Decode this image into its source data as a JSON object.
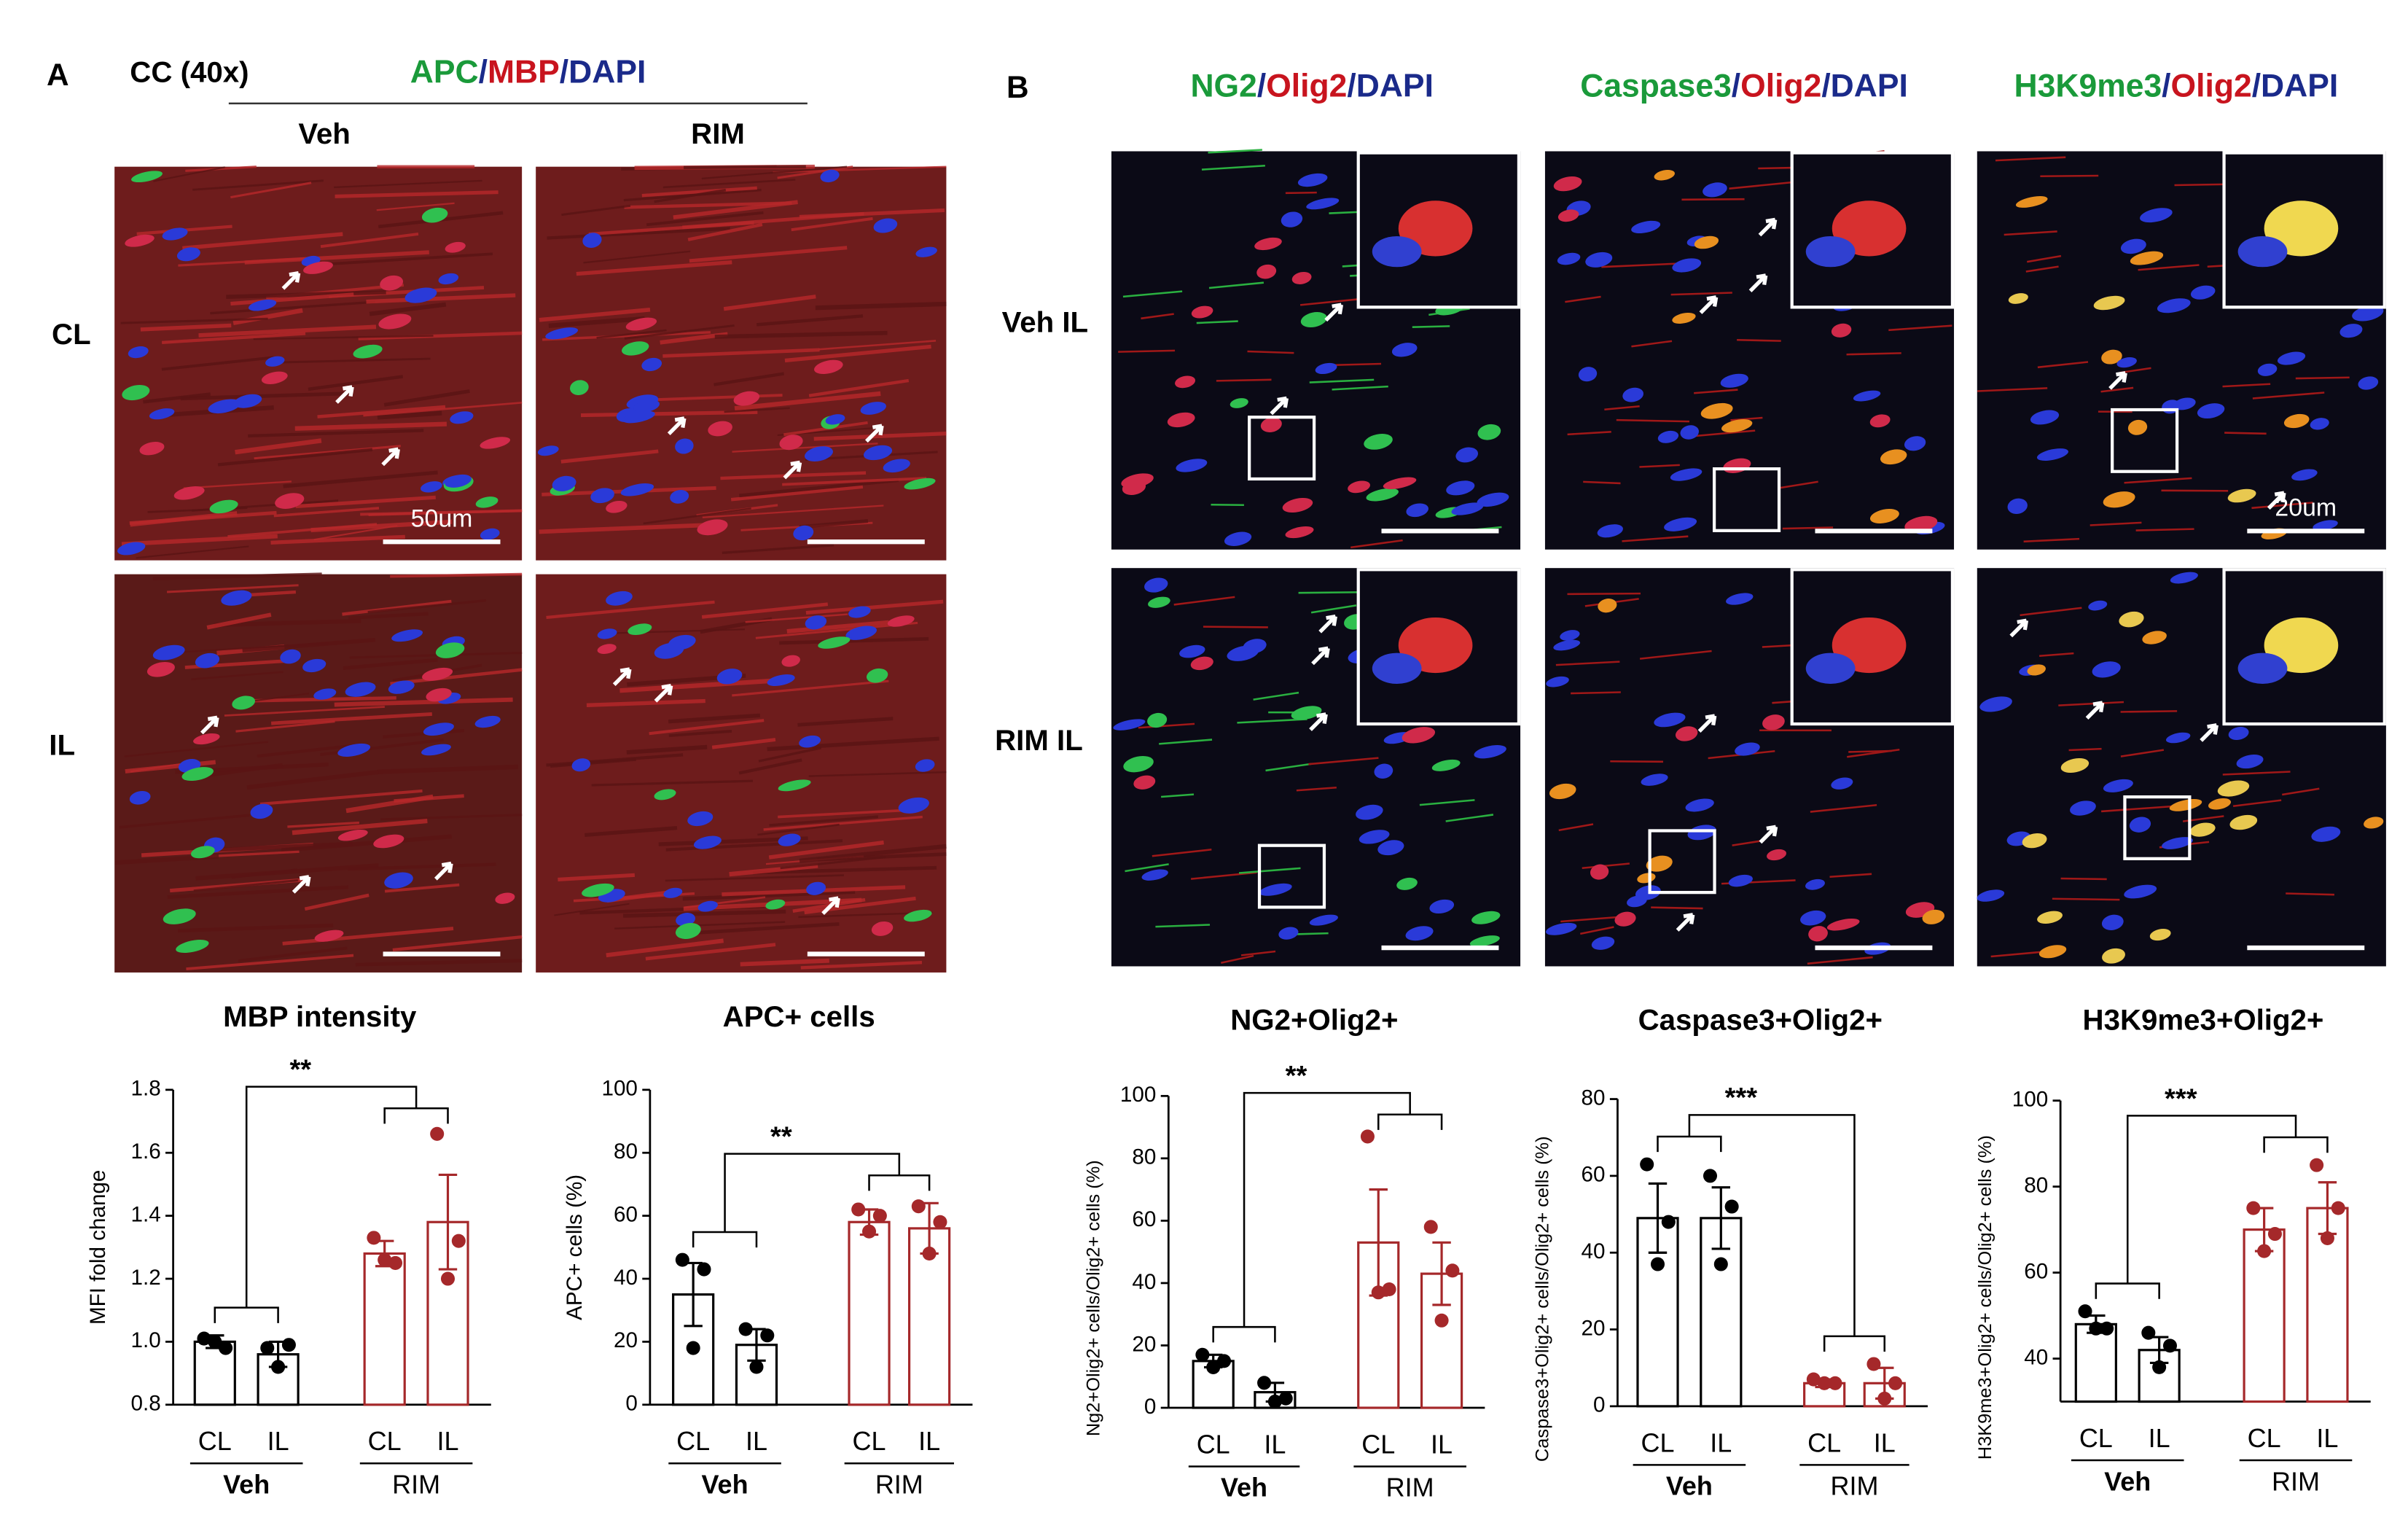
{
  "panel_a": {
    "label": "A",
    "region": "CC (40x)",
    "stain": [
      {
        "text": "APC",
        "color": "#1a9a3a"
      },
      {
        "text": "/",
        "color": "#1a2a8a"
      },
      {
        "text": "MBP",
        "color": "#c8141e"
      },
      {
        "text": "/",
        "color": "#1a2a8a"
      },
      {
        "text": "DAPI",
        "color": "#1a2a8a"
      }
    ],
    "columns": [
      "Veh",
      "RIM"
    ],
    "rows": [
      "CL",
      "IL"
    ],
    "scale_bar": "50um"
  },
  "panel_b": {
    "label": "B",
    "columns": [
      [
        {
          "text": "NG2",
          "color": "#1a9a3a"
        },
        {
          "text": "/",
          "color": "#1a2a8a"
        },
        {
          "text": "Olig2",
          "color": "#c8141e"
        },
        {
          "text": "/",
          "color": "#1a2a8a"
        },
        {
          "text": "DAPI",
          "color": "#1a2a8a"
        }
      ],
      [
        {
          "text": "Caspase3",
          "color": "#1a9a3a"
        },
        {
          "text": "/",
          "color": "#1a2a8a"
        },
        {
          "text": "Olig2",
          "color": "#c8141e"
        },
        {
          "text": "/",
          "color": "#1a2a8a"
        },
        {
          "text": "DAPI",
          "color": "#1a2a8a"
        }
      ],
      [
        {
          "text": "H3K9me3",
          "color": "#1a9a3a"
        },
        {
          "text": "/",
          "color": "#1a2a8a"
        },
        {
          "text": "Olig2",
          "color": "#c8141e"
        },
        {
          "text": "/",
          "color": "#1a2a8a"
        },
        {
          "text": "DAPI",
          "color": "#1a2a8a"
        }
      ]
    ],
    "rows": [
      "Veh IL",
      "RIM IL"
    ],
    "scale_bar": "20um"
  },
  "chart_data": [
    {
      "type": "bar",
      "title": "MBP intensity",
      "ylabel": "MFI fold change",
      "categories": [
        "CL",
        "IL"
      ],
      "significance": "**",
      "ylim": [
        0.8,
        1.8
      ],
      "yticks": [
        {
          "value": 0.8,
          "label": "0.8"
        },
        {
          "value": 1.0,
          "label": "1.0"
        },
        {
          "value": 1.2,
          "label": "1.2"
        },
        {
          "value": 1.4,
          "label": "1.4"
        },
        {
          "value": 1.6,
          "label": "1.6"
        },
        {
          "value": 1.8,
          "label": "1.8"
        }
      ],
      "series": [
        {
          "name": "Veh",
          "color": "#000000",
          "values": [
            1.0,
            0.96
          ],
          "errors": [
            0.02,
            0.04
          ],
          "points": [
            [
              1.01,
              0.98,
              1.0
            ],
            [
              0.98,
              0.99,
              0.92
            ]
          ]
        },
        {
          "name": "RIM",
          "color": "#a5282a",
          "values": [
            1.28,
            1.38
          ],
          "errors": [
            0.04,
            0.15
          ],
          "points": [
            [
              1.33,
              1.25,
              1.26
            ],
            [
              1.66,
              1.32,
              1.2
            ]
          ]
        }
      ]
    },
    {
      "type": "bar",
      "title": "APC+ cells",
      "ylabel": "APC+ cells (%)",
      "categories": [
        "CL",
        "IL"
      ],
      "significance": "**",
      "ylim": [
        0,
        100
      ],
      "yticks": [
        0,
        20,
        40,
        60,
        80,
        100
      ],
      "series": [
        {
          "name": "Veh",
          "color": "#000000",
          "values": [
            35,
            19
          ],
          "errors": [
            10,
            5
          ],
          "points": [
            [
              46,
              43,
              18
            ],
            [
              24,
              22,
              12
            ]
          ]
        },
        {
          "name": "RIM",
          "color": "#a5282a",
          "values": [
            58,
            56
          ],
          "errors": [
            4,
            8
          ],
          "points": [
            [
              62,
              60,
              55
            ],
            [
              63,
              58,
              48
            ]
          ]
        }
      ]
    },
    {
      "type": "bar",
      "title": "NG2+Olig2+",
      "ylabel": "Ng2+Olig2+ cells/Olig2+ cells (%)",
      "categories": [
        "CL",
        "IL"
      ],
      "significance": "**",
      "ylim": [
        0,
        100
      ],
      "yticks": [
        0,
        20,
        40,
        60,
        80,
        100
      ],
      "series": [
        {
          "name": "Veh",
          "color": "#000000",
          "values": [
            15,
            5
          ],
          "errors": [
            2,
            3
          ],
          "points": [
            [
              17,
              15,
              13
            ],
            [
              8,
              3,
              2
            ]
          ]
        },
        {
          "name": "RIM",
          "color": "#a5282a",
          "values": [
            53,
            43
          ],
          "errors": [
            17,
            10
          ],
          "points": [
            [
              87,
              38,
              37
            ],
            [
              58,
              44,
              28
            ]
          ]
        }
      ]
    },
    {
      "type": "bar",
      "title": "Caspase3+Olig2+",
      "ylabel": "Caspase3+Olig2+ cells/Olig2+ cells (%)",
      "categories": [
        "CL",
        "IL"
      ],
      "significance": "***",
      "ylim": [
        0,
        80
      ],
      "yticks": [
        0,
        20,
        40,
        60,
        80
      ],
      "series": [
        {
          "name": "Veh",
          "color": "#000000",
          "values": [
            49,
            49
          ],
          "errors": [
            9,
            8
          ],
          "points": [
            [
              63,
              48,
              37
            ],
            [
              60,
              52,
              37
            ]
          ]
        },
        {
          "name": "RIM",
          "color": "#a5282a",
          "values": [
            6,
            6
          ],
          "errors": [
            1,
            4
          ],
          "points": [
            [
              7,
              6,
              6
            ],
            [
              11,
              6,
              2
            ]
          ]
        }
      ]
    },
    {
      "type": "bar",
      "title": "H3K9me3+Olig2+",
      "ylabel": "H3K9me3+Olig2+ cells/Olig2+ cells (%)",
      "categories": [
        "CL",
        "IL"
      ],
      "significance": "***",
      "ylim": [
        30,
        100
      ],
      "yticks": [
        40,
        60,
        80,
        100
      ],
      "series": [
        {
          "name": "Veh",
          "color": "#000000",
          "values": [
            48,
            42
          ],
          "errors": [
            2,
            3
          ],
          "points": [
            [
              51,
              47,
              47
            ],
            [
              46,
              43,
              38
            ]
          ]
        },
        {
          "name": "RIM",
          "color": "#a5282a",
          "values": [
            70,
            75
          ],
          "errors": [
            5,
            6
          ],
          "points": [
            [
              75,
              69,
              65
            ],
            [
              85,
              75,
              68
            ]
          ]
        }
      ]
    }
  ]
}
